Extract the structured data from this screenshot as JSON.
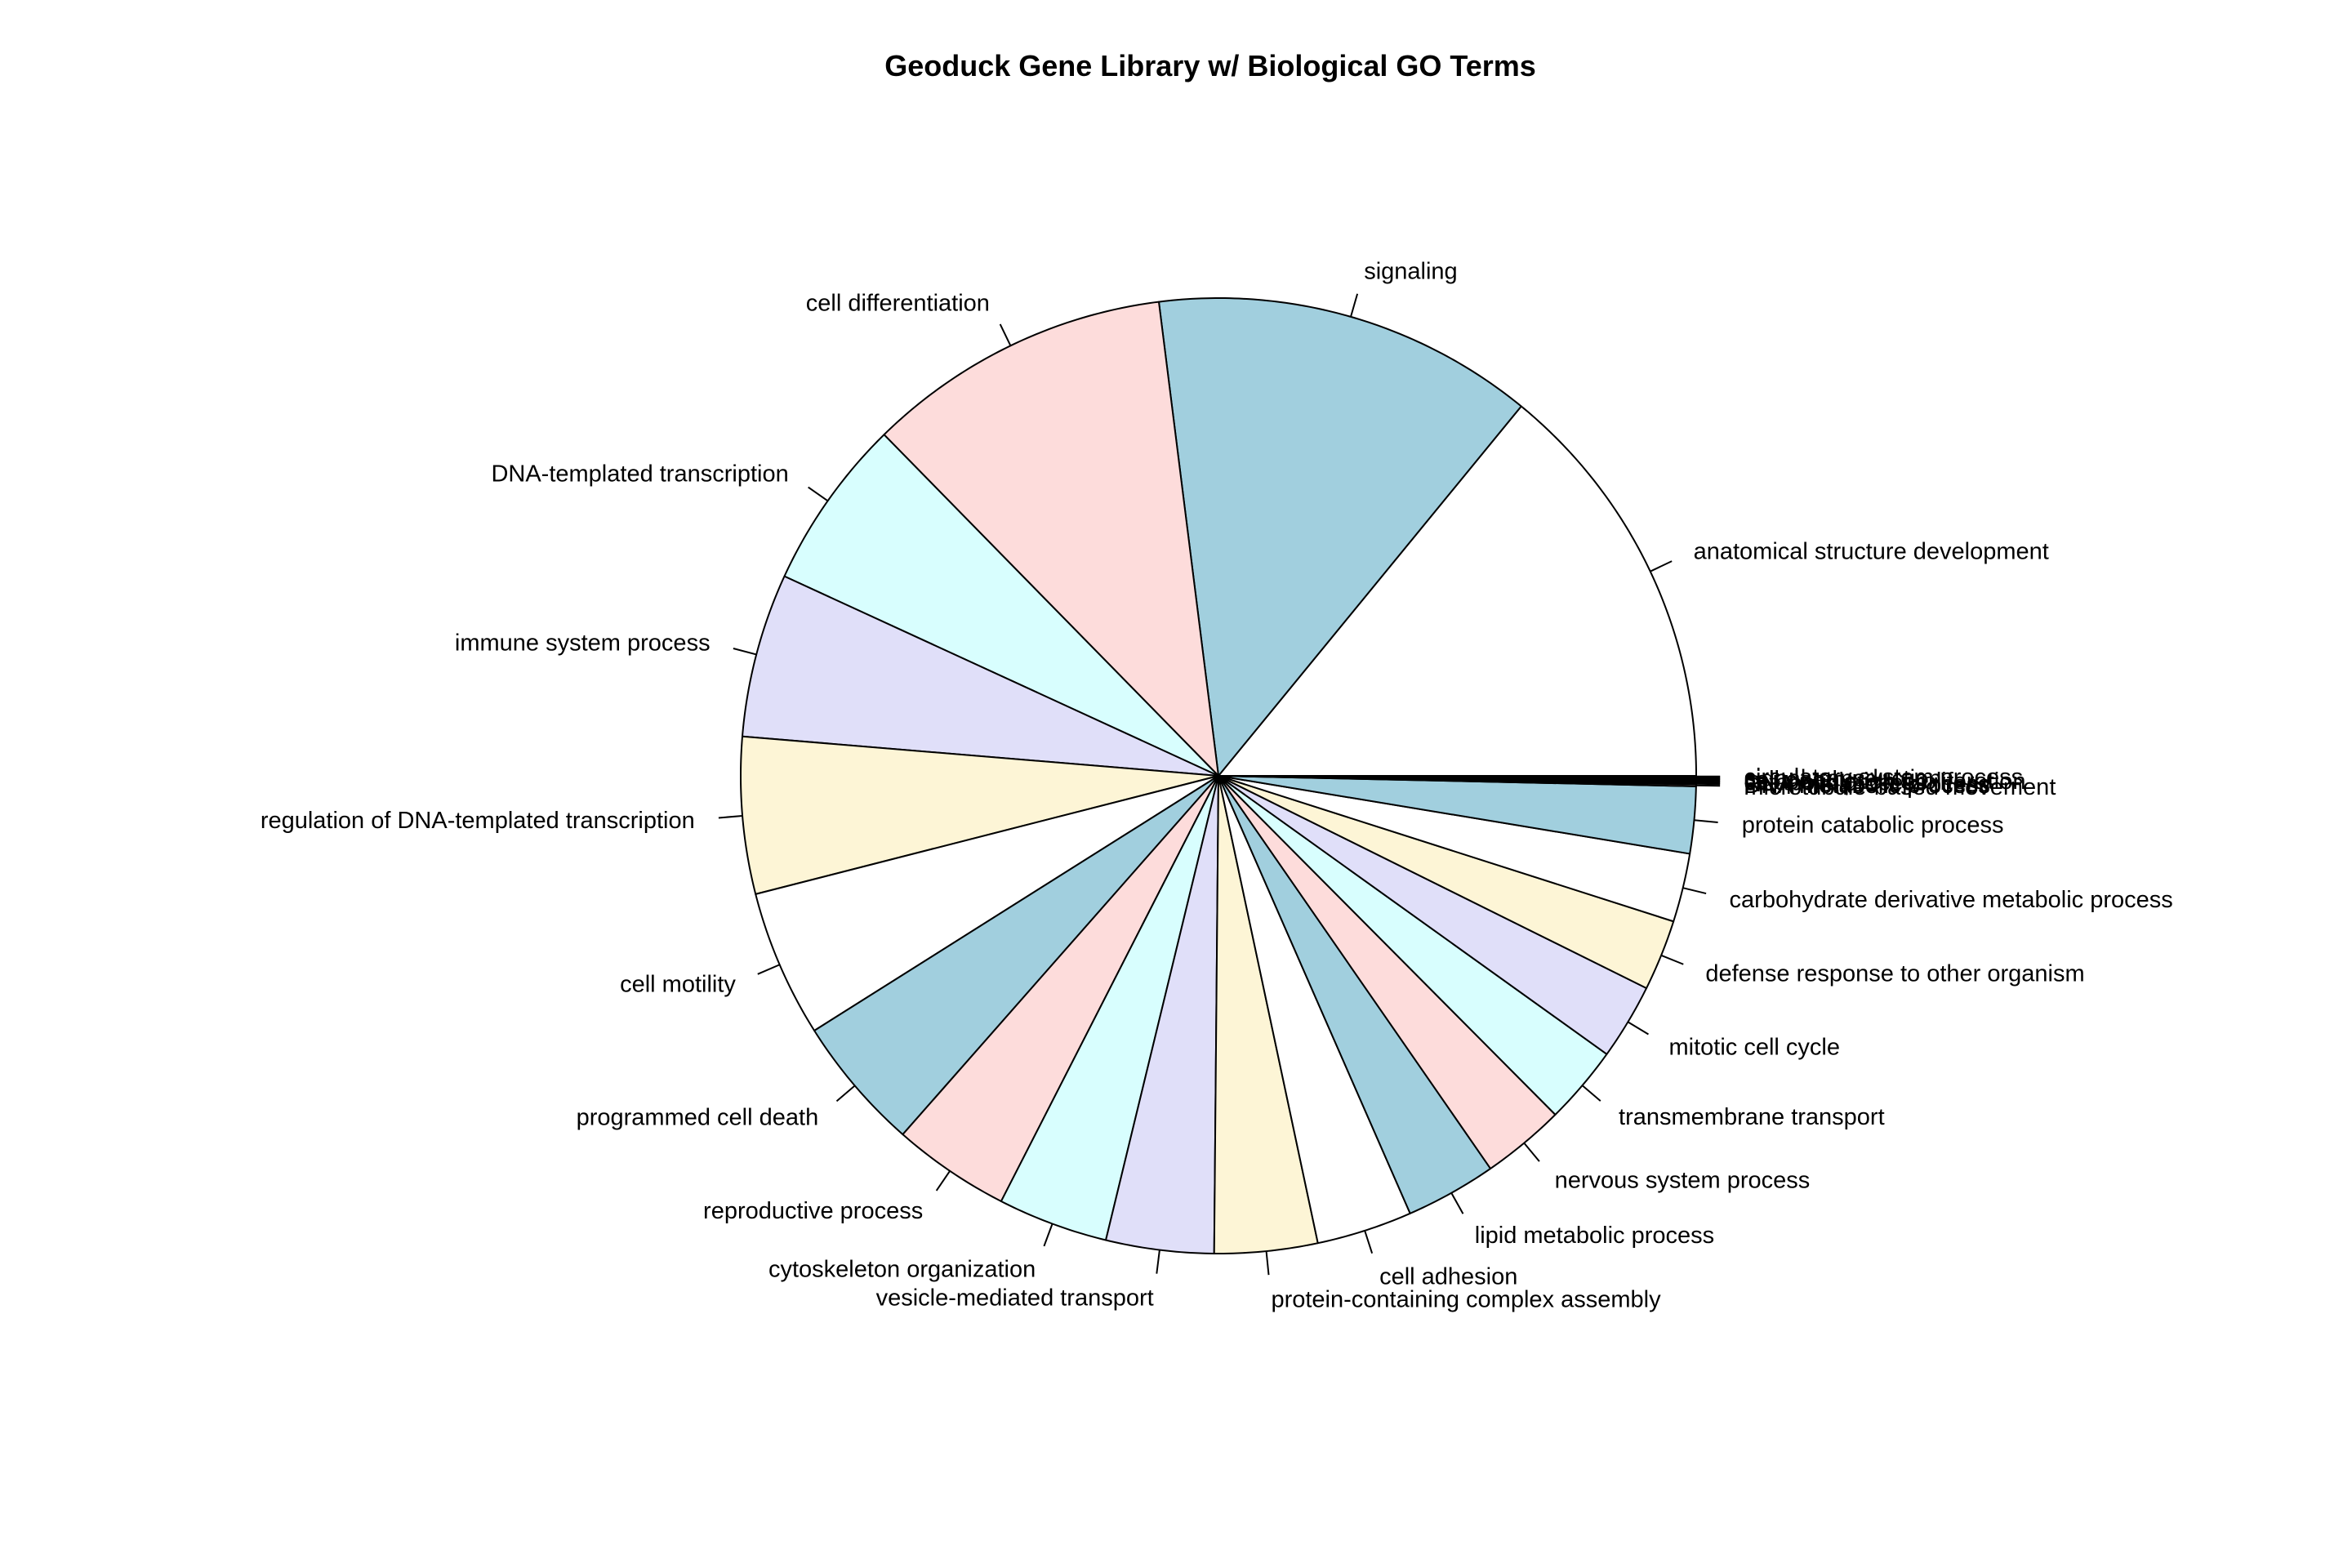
{
  "chart_data": {
    "type": "pie",
    "title": "Geoduck Gene Library w/ Biological GO Terms",
    "direction": "counter-clockwise",
    "start": "3 o'clock",
    "palette": [
      "#ffffff",
      "#a1cfde",
      "#fddcdb",
      "#d8fefe",
      "#e0dff9",
      "#fdf5d6"
    ],
    "outline_color": "#000000",
    "slices": [
      {
        "label": "anatomical structure development",
        "value": 13.71
      },
      {
        "label": "signaling",
        "value": 12.58
      },
      {
        "label": "cell differentiation",
        "value": 10.08
      },
      {
        "label": "DNA-templated transcription",
        "value": 5.65
      },
      {
        "label": "immune system process",
        "value": 5.4
      },
      {
        "label": "regulation of DNA-templated transcription",
        "value": 5.16
      },
      {
        "label": "cell motility",
        "value": 4.84
      },
      {
        "label": "programmed cell death",
        "value": 4.44
      },
      {
        "label": "reproductive process",
        "value": 3.87
      },
      {
        "label": "cytoskeleton organization",
        "value": 3.63
      },
      {
        "label": "vesicle-mediated transport",
        "value": 3.55
      },
      {
        "label": "protein-containing complex assembly",
        "value": 3.39
      },
      {
        "label": "cell adhesion",
        "value": 3.15
      },
      {
        "label": "lipid metabolic process",
        "value": 2.99
      },
      {
        "label": "nervous system process",
        "value": 2.74
      },
      {
        "label": "transmembrane transport",
        "value": 2.58
      },
      {
        "label": "mitotic cell cycle",
        "value": 2.5
      },
      {
        "label": "defense response to other organism",
        "value": 2.34
      },
      {
        "label": "carbohydrate derivative metabolic process",
        "value": 2.26
      },
      {
        "label": "protein catabolic process",
        "value": 2.2
      },
      {
        "label": "microtubule-based movement",
        "value": 0.06
      },
      {
        "label": "DNA metabolic process",
        "value": 0.04
      },
      {
        "label": "RNA metabolic process",
        "value": 0.04
      },
      {
        "label": "catabolic process",
        "value": 0.04
      },
      {
        "label": "cell population proliferation",
        "value": 0.04
      },
      {
        "label": "cell death",
        "value": 0.04
      },
      {
        "label": "signal transduction",
        "value": 0.04
      },
      {
        "label": "circulatory system process",
        "value": 0.04
      }
    ]
  }
}
